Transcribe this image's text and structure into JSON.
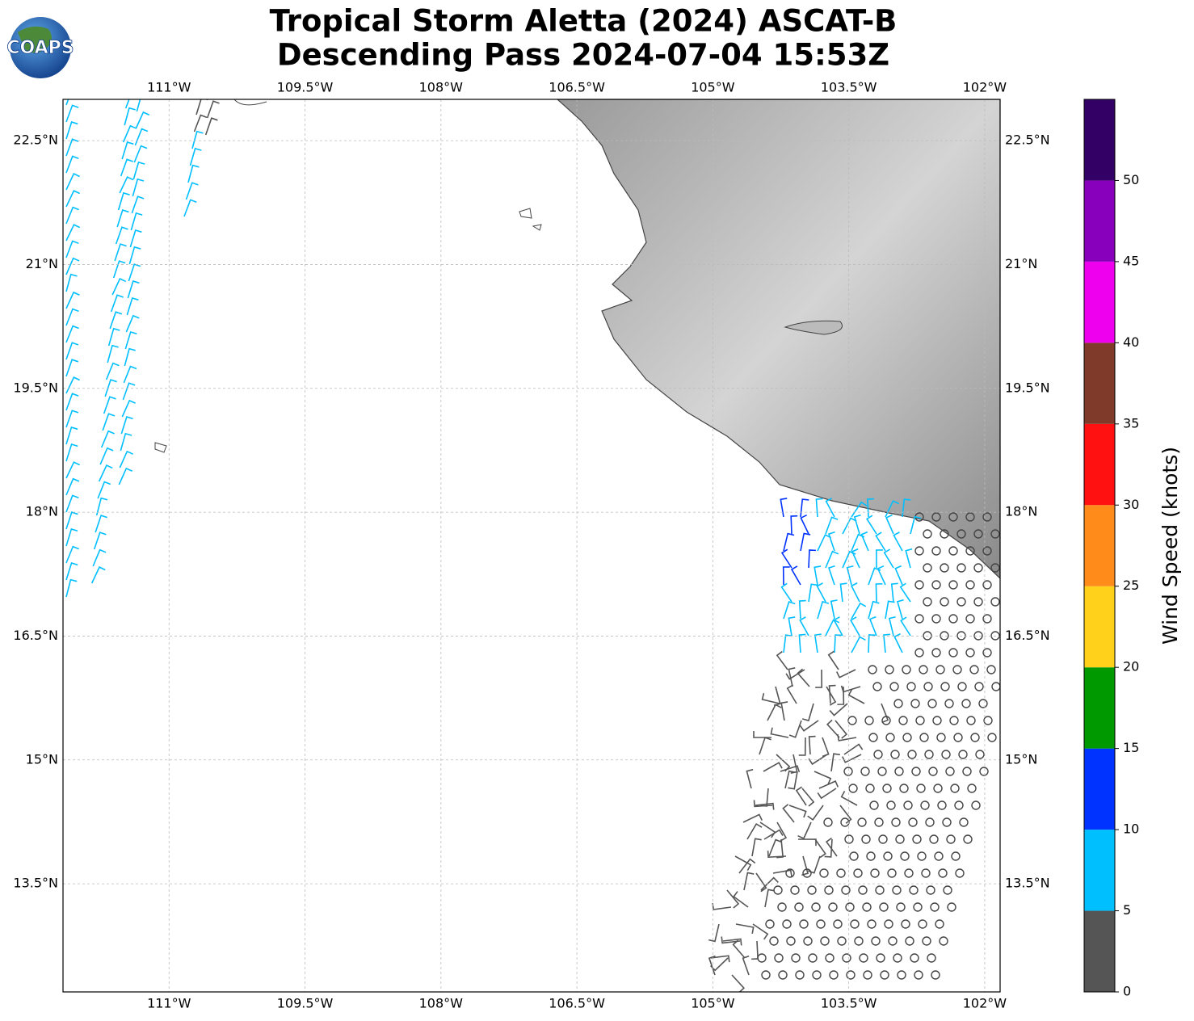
{
  "chart_data": {
    "type": "map",
    "logo_text": "COAPS",
    "title": "Tropical Storm Aletta (2024) ASCAT-B",
    "subtitle": "Descending Pass 2024-07-04 15:53Z",
    "xlim": [
      -112.17,
      -101.83
    ],
    "ylim": [
      12.19,
      23.0
    ],
    "xticks": [
      {
        "value": -111,
        "label": "111°W"
      },
      {
        "value": -109.5,
        "label": "109.5°W"
      },
      {
        "value": -108,
        "label": "108°W"
      },
      {
        "value": -106.5,
        "label": "106.5°W"
      },
      {
        "value": -105,
        "label": "105°W"
      },
      {
        "value": -103.5,
        "label": "103.5°W"
      },
      {
        "value": -102,
        "label": "102°W"
      }
    ],
    "yticks": [
      {
        "value": 22.5,
        "label": "22.5°N"
      },
      {
        "value": 21,
        "label": "21°N"
      },
      {
        "value": 19.5,
        "label": "19.5°N"
      },
      {
        "value": 18,
        "label": "18°N"
      },
      {
        "value": 16.5,
        "label": "16.5°N"
      },
      {
        "value": 15,
        "label": "15°N"
      },
      {
        "value": 13.5,
        "label": "13.5°N"
      }
    ],
    "grid": true,
    "colorbar": {
      "label": "Wind Speed (knots)",
      "lim": [
        0,
        55
      ],
      "bounds": [
        0,
        5,
        10,
        15,
        20,
        25,
        30,
        35,
        40,
        45,
        50,
        55
      ],
      "colors": [
        "#555555",
        "#00bfff",
        "#0033ff",
        "#009900",
        "#ffd11a",
        "#ff8c1a",
        "#ff1111",
        "#803a2a",
        "#ee00ee",
        "#8800bb",
        "#330066"
      ],
      "ticks": [
        0,
        5,
        10,
        15,
        20,
        25,
        30,
        35,
        40,
        45,
        50
      ]
    }
  }
}
